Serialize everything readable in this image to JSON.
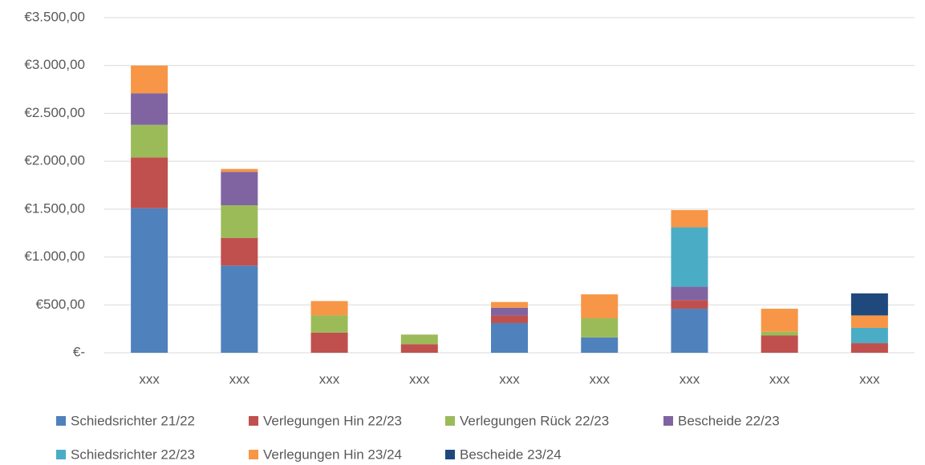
{
  "chart_data": {
    "type": "stacked_bar",
    "categories": [
      "xxx",
      "xxx",
      "xxx",
      "xxx",
      "xxx",
      "xxx",
      "xxx",
      "xxx",
      "xxx"
    ],
    "series": [
      {
        "name": "Schiedsrichter 21/22",
        "color": "#4f81bd",
        "values": [
          1510,
          910,
          0,
          0,
          310,
          160,
          460,
          0,
          0
        ]
      },
      {
        "name": "Verlegungen Hin 22/23",
        "color": "#c0504d",
        "values": [
          530,
          290,
          210,
          90,
          80,
          0,
          90,
          180,
          100
        ]
      },
      {
        "name": "Verlegungen Rück 22/23",
        "color": "#9bbb59",
        "values": [
          340,
          340,
          180,
          100,
          0,
          200,
          0,
          40,
          0
        ]
      },
      {
        "name": "Bescheide 22/23",
        "color": "#8064a2",
        "values": [
          330,
          350,
          0,
          0,
          80,
          0,
          140,
          0,
          0
        ]
      },
      {
        "name": "Schiedsrichter 22/23",
        "color": "#4bacc6",
        "values": [
          0,
          0,
          0,
          0,
          0,
          0,
          620,
          0,
          160
        ]
      },
      {
        "name": "Verlegungen Hin 23/24",
        "color": "#f79646",
        "values": [
          290,
          30,
          150,
          0,
          60,
          250,
          180,
          240,
          130
        ]
      },
      {
        "name": "Bescheide 23/24",
        "color": "#1f497d",
        "values": [
          0,
          0,
          0,
          0,
          0,
          0,
          0,
          0,
          230
        ]
      }
    ],
    "ylim": [
      0,
      3500
    ],
    "yticks": [
      {
        "value": 0,
        "label": "€-"
      },
      {
        "value": 500,
        "label": "€500,00"
      },
      {
        "value": 1000,
        "label": "€1.000,00"
      },
      {
        "value": 1500,
        "label": "€1.500,00"
      },
      {
        "value": 2000,
        "label": "€2.000,00"
      },
      {
        "value": 2500,
        "label": "€2.500,00"
      },
      {
        "value": 3000,
        "label": "€3.000,00"
      },
      {
        "value": 3500,
        "label": "€3.500,00"
      }
    ],
    "grid": true
  }
}
